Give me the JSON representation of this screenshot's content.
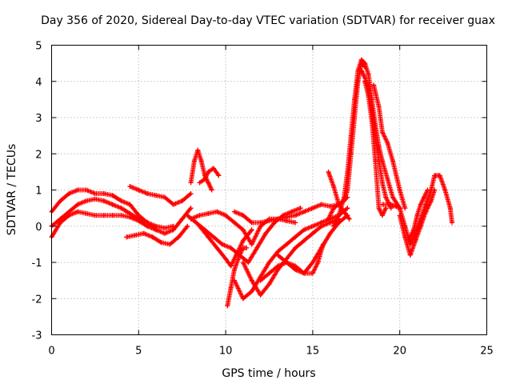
{
  "chart_data": {
    "type": "scatter",
    "title": "Day 356 of 2020, Sidereal Day-to-day VTEC variation (SDTVAR) for receiver guax",
    "xlabel": "GPS time / hours",
    "ylabel": "SDTVAR / TECUs",
    "xlim": [
      0,
      25
    ],
    "ylim": [
      -3,
      5
    ],
    "xticks": [
      0,
      5,
      10,
      15,
      20,
      25
    ],
    "yticks": [
      -3,
      -2,
      -1,
      0,
      1,
      2,
      3,
      4,
      5
    ],
    "grid": true,
    "marker": "+",
    "color": "#ff0000",
    "series": [
      {
        "name": "track-1",
        "x": [
          0.0,
          0.5,
          1.0,
          1.5,
          2.0,
          2.5,
          3.0,
          3.5,
          4.0,
          4.5,
          5.0,
          5.5,
          6.0,
          6.5,
          7.0,
          7.5,
          8.0
        ],
        "y": [
          0.4,
          0.7,
          0.9,
          1.0,
          1.0,
          0.9,
          0.9,
          0.85,
          0.7,
          0.6,
          0.3,
          0.1,
          -0.1,
          -0.2,
          -0.1,
          0.2,
          0.5
        ]
      },
      {
        "name": "track-2",
        "x": [
          0.0,
          0.5,
          1.0,
          1.5,
          2.0,
          2.5,
          3.0,
          3.5,
          4.0,
          4.5,
          5.0,
          5.5,
          6.0,
          6.5,
          7.0
        ],
        "y": [
          0.0,
          0.2,
          0.4,
          0.6,
          0.7,
          0.75,
          0.7,
          0.6,
          0.5,
          0.35,
          0.2,
          0.1,
          0.0,
          -0.05,
          0.0
        ]
      },
      {
        "name": "track-3",
        "x": [
          0.0,
          0.5,
          1.0,
          1.5,
          2.0,
          2.5,
          3.0,
          3.5,
          4.0,
          4.5,
          5.0,
          5.5,
          6.0
        ],
        "y": [
          -0.3,
          0.1,
          0.3,
          0.4,
          0.35,
          0.3,
          0.3,
          0.3,
          0.3,
          0.25,
          0.15,
          0.0,
          -0.1
        ]
      },
      {
        "name": "track-4",
        "x": [
          4.3,
          4.8,
          5.3,
          5.8,
          6.3,
          6.8,
          7.3,
          7.8
        ],
        "y": [
          -0.3,
          -0.25,
          -0.2,
          -0.3,
          -0.45,
          -0.5,
          -0.3,
          0.0
        ]
      },
      {
        "name": "track-5",
        "x": [
          4.5,
          5.0,
          5.5,
          6.0,
          6.5,
          7.0,
          7.5,
          8.0
        ],
        "y": [
          1.1,
          1.0,
          0.9,
          0.85,
          0.8,
          0.6,
          0.7,
          0.9
        ]
      },
      {
        "name": "track-6",
        "x": [
          8.0,
          8.2,
          8.4,
          8.6,
          8.8,
          9.0,
          9.2
        ],
        "y": [
          1.2,
          1.8,
          2.1,
          1.8,
          1.4,
          1.2,
          1.0
        ]
      },
      {
        "name": "track-7",
        "x": [
          8.5,
          8.8,
          9.0,
          9.3,
          9.6
        ],
        "y": [
          1.2,
          1.3,
          1.5,
          1.6,
          1.4
        ]
      },
      {
        "name": "track-8",
        "x": [
          8.0,
          8.5,
          9.0,
          9.5,
          10.0,
          10.5,
          11.0,
          11.5,
          12.0,
          12.5,
          13.0,
          13.5,
          14.0
        ],
        "y": [
          0.2,
          0.3,
          0.35,
          0.4,
          0.3,
          0.1,
          -0.1,
          -0.5,
          0.0,
          0.2,
          0.2,
          0.15,
          0.1
        ]
      },
      {
        "name": "track-9",
        "x": [
          7.8,
          8.3,
          8.8,
          9.3,
          9.8,
          10.3,
          10.8,
          11.3,
          11.8,
          12.3,
          12.8,
          13.3,
          13.8,
          14.3
        ],
        "y": [
          0.3,
          0.1,
          -0.1,
          -0.3,
          -0.5,
          -0.6,
          -0.8,
          -1.0,
          -0.6,
          -0.2,
          0.1,
          0.3,
          0.4,
          0.5
        ]
      },
      {
        "name": "track-10",
        "x": [
          8.5,
          9.0,
          9.5,
          10.0,
          10.3,
          10.6,
          11.0,
          11.5
        ],
        "y": [
          0.0,
          -0.3,
          -0.6,
          -0.9,
          -1.1,
          -0.8,
          -0.4,
          -0.1
        ]
      },
      {
        "name": "track-11",
        "x": [
          10.5,
          11.0,
          11.5,
          12.0,
          12.5,
          13.0,
          13.5,
          14.0,
          14.5,
          15.0,
          15.5,
          16.0,
          16.5,
          17.0
        ],
        "y": [
          0.4,
          0.3,
          0.1,
          0.1,
          0.15,
          0.2,
          0.25,
          0.3,
          0.4,
          0.5,
          0.6,
          0.55,
          0.6,
          0.8
        ]
      },
      {
        "name": "track-12",
        "x": [
          10.1,
          10.3,
          10.5,
          10.8,
          11.0,
          11.2
        ],
        "y": [
          -2.2,
          -1.7,
          -1.2,
          -0.8,
          -0.6,
          -0.6
        ]
      },
      {
        "name": "track-13",
        "x": [
          10.5,
          11.0,
          11.5,
          12.0,
          12.5,
          13.0,
          13.5,
          14.0,
          14.5,
          15.0,
          15.5,
          16.0,
          16.5,
          17.0
        ],
        "y": [
          -1.5,
          -2.0,
          -1.8,
          -1.4,
          -1.0,
          -0.7,
          -0.5,
          -0.3,
          -0.1,
          0.0,
          0.1,
          0.2,
          0.3,
          0.5
        ]
      },
      {
        "name": "track-14",
        "x": [
          11.0,
          11.5,
          12.0,
          12.5,
          13.0,
          13.5,
          14.0,
          14.5,
          15.0,
          15.5,
          16.0,
          16.5
        ],
        "y": [
          -1.0,
          -1.5,
          -1.9,
          -1.6,
          -1.2,
          -0.9,
          -0.6,
          -0.4,
          -0.2,
          0.0,
          0.1,
          0.2
        ]
      },
      {
        "name": "track-15",
        "x": [
          12.0,
          12.5,
          13.0,
          13.5,
          14.0,
          14.5,
          15.0,
          15.5,
          16.0,
          16.5,
          17.0
        ],
        "y": [
          -1.5,
          -1.3,
          -1.1,
          -1.0,
          -1.1,
          -1.3,
          -1.0,
          -0.6,
          -0.2,
          0.1,
          0.3
        ]
      },
      {
        "name": "track-16",
        "x": [
          13.0,
          13.5,
          14.0,
          14.5,
          15.0,
          15.3,
          15.6
        ],
        "y": [
          -0.8,
          -1.0,
          -1.2,
          -1.3,
          -1.3,
          -1.0,
          -0.5
        ]
      },
      {
        "name": "track-17",
        "x": [
          15.9,
          16.2,
          16.5,
          16.8,
          17.0,
          17.2,
          17.4,
          17.6,
          17.8,
          18.0
        ],
        "y": [
          0.2,
          0.5,
          0.6,
          0.7,
          1.0,
          2.0,
          3.0,
          4.0,
          4.5,
          4.4
        ]
      },
      {
        "name": "track-18",
        "x": [
          15.9,
          16.2,
          16.5,
          16.8,
          17.1
        ],
        "y": [
          1.5,
          1.1,
          0.6,
          0.4,
          0.2
        ]
      },
      {
        "name": "track-19",
        "x": [
          16.2,
          16.5,
          16.8,
          17.0,
          17.2,
          17.4,
          17.6,
          17.8,
          18.0,
          18.2,
          18.4,
          18.6,
          18.8,
          19.0,
          19.3,
          19.6,
          20.0
        ],
        "y": [
          0.0,
          0.3,
          0.8,
          1.5,
          2.5,
          3.5,
          4.3,
          4.6,
          4.5,
          4.2,
          3.5,
          2.8,
          2.2,
          1.8,
          1.3,
          0.8,
          0.5
        ]
      },
      {
        "name": "track-20",
        "x": [
          17.8,
          18.0,
          18.2,
          18.4,
          18.6,
          18.8,
          19.0,
          19.2,
          19.5
        ],
        "y": [
          4.3,
          4.1,
          3.8,
          3.2,
          2.5,
          1.8,
          1.2,
          0.8,
          0.5
        ]
      },
      {
        "name": "track-21",
        "x": [
          18.0,
          18.2,
          18.4,
          18.6,
          18.8,
          19.0,
          19.2
        ],
        "y": [
          4.0,
          3.6,
          2.9,
          1.8,
          0.5,
          0.3,
          0.5
        ]
      },
      {
        "name": "track-22",
        "x": [
          18.5,
          18.8,
          19.0,
          19.3,
          19.6,
          20.0,
          20.3
        ],
        "y": [
          3.9,
          3.3,
          2.6,
          2.3,
          1.8,
          1.0,
          0.5
        ]
      },
      {
        "name": "track-23",
        "x": [
          19.0,
          19.5,
          20.0,
          20.3,
          20.6,
          20.9,
          21.2,
          21.5,
          21.8,
          22.0,
          22.3,
          22.6,
          22.9,
          23.0
        ],
        "y": [
          0.6,
          0.6,
          0.5,
          0.0,
          -0.5,
          -0.2,
          0.2,
          0.6,
          1.0,
          1.4,
          1.4,
          1.0,
          0.5,
          0.1
        ]
      },
      {
        "name": "track-24",
        "x": [
          20.0,
          20.3,
          20.6,
          20.9,
          21.2,
          21.5,
          21.8,
          22.0
        ],
        "y": [
          0.3,
          -0.3,
          -0.8,
          -0.4,
          0.0,
          0.4,
          0.7,
          1.0
        ]
      },
      {
        "name": "track-25",
        "x": [
          20.5,
          20.8,
          21.0,
          21.2,
          21.4,
          21.6
        ],
        "y": [
          -0.4,
          -0.1,
          0.3,
          0.6,
          0.8,
          1.0
        ]
      }
    ]
  }
}
